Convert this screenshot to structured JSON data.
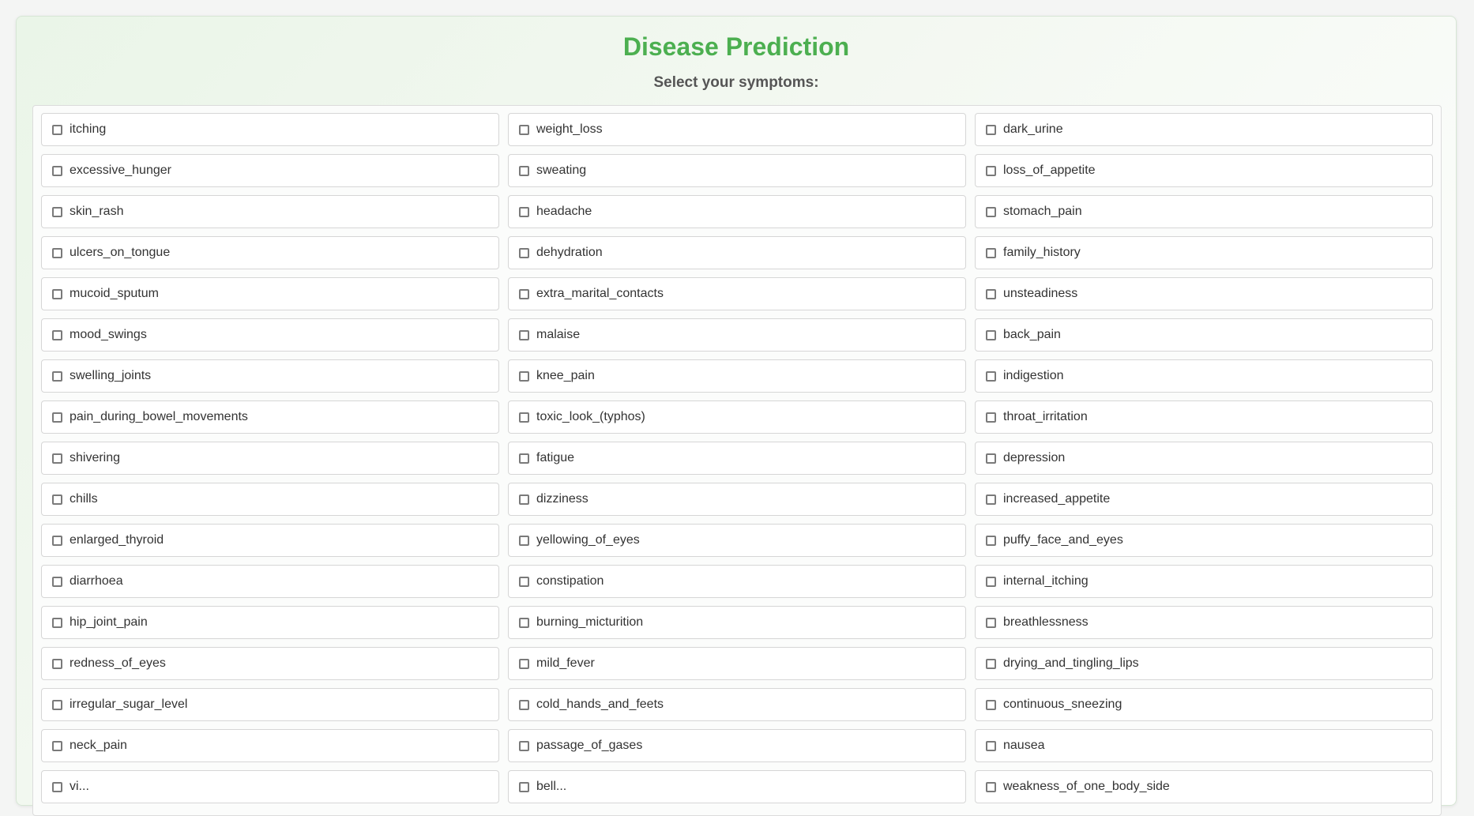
{
  "header": {
    "title": "Disease Prediction",
    "subtitle": "Select your symptoms:"
  },
  "colors": {
    "title": "#4caf50",
    "subtitle": "#555555",
    "text": "#333333",
    "checkbox_border": "#7a7a7a"
  },
  "symptoms": [
    "itching",
    "weight_loss",
    "dark_urine",
    "excessive_hunger",
    "sweating",
    "loss_of_appetite",
    "skin_rash",
    "headache",
    "stomach_pain",
    "ulcers_on_tongue",
    "dehydration",
    "family_history",
    "mucoid_sputum",
    "extra_marital_contacts",
    "unsteadiness",
    "mood_swings",
    "malaise",
    "back_pain",
    "swelling_joints",
    "knee_pain",
    "indigestion",
    "pain_during_bowel_movements",
    "toxic_look_(typhos)",
    "throat_irritation",
    "shivering",
    "fatigue",
    "depression",
    "chills",
    "dizziness",
    "increased_appetite",
    "enlarged_thyroid",
    "yellowing_of_eyes",
    "puffy_face_and_eyes",
    "diarrhoea",
    "constipation",
    "internal_itching",
    "hip_joint_pain",
    "burning_micturition",
    "breathlessness",
    "redness_of_eyes",
    "mild_fever",
    "drying_and_tingling_lips",
    "irregular_sugar_level",
    "cold_hands_and_feets",
    "continuous_sneezing",
    "neck_pain",
    "passage_of_gases",
    "nausea",
    "vi...",
    "bell...",
    "weakness_of_one_body_side"
  ]
}
